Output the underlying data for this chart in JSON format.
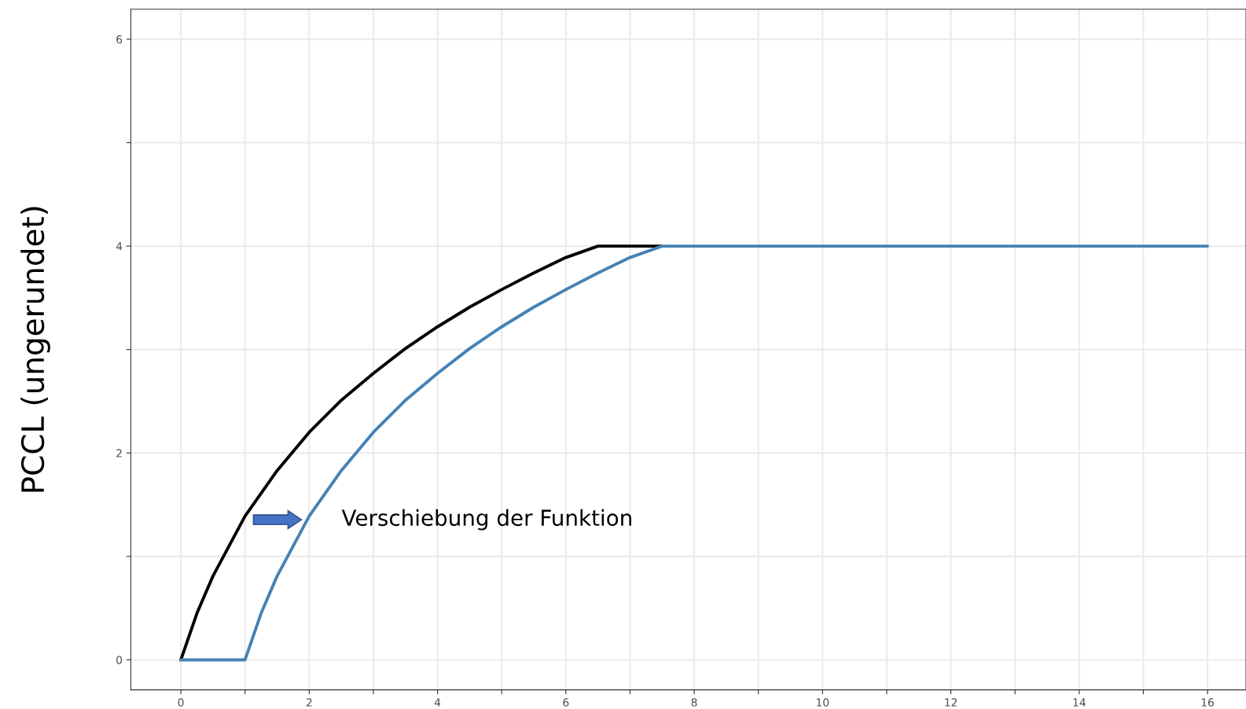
{
  "chart_data": {
    "type": "line",
    "ylabel": "PCCL (ungerundet)",
    "series": [
      {
        "color": "#000000",
        "x": [
          0,
          0.25,
          0.5,
          1,
          1.5,
          2,
          2.5,
          3,
          3.5,
          4,
          4.5,
          5,
          5.5,
          6,
          6.5,
          7.5
        ],
        "values": [
          0,
          0.45,
          0.81,
          1.39,
          1.83,
          2.2,
          2.51,
          2.77,
          3.01,
          3.22,
          3.41,
          3.58,
          3.74,
          3.89,
          4,
          4
        ]
      },
      {
        "color": "#4682b4",
        "x": [
          0,
          1,
          1.25,
          1.5,
          2,
          2.5,
          3,
          3.5,
          4,
          4.5,
          5,
          5.5,
          6,
          6.5,
          7,
          7.5,
          16
        ],
        "values": [
          0,
          0,
          0.45,
          0.81,
          1.39,
          1.83,
          2.2,
          2.51,
          2.77,
          3.01,
          3.22,
          3.41,
          3.58,
          3.74,
          3.89,
          4,
          4
        ]
      }
    ],
    "annotations": [
      "Verschiebung der Funktion"
    ],
    "xlim": [
      -0.78,
      16.6
    ],
    "ylim": [
      -0.29,
      6.29
    ],
    "xticks": [
      0,
      {
        "value": 1,
        "label": null
      },
      2,
      {
        "value": 3,
        "label": null
      },
      4,
      {
        "value": 5,
        "label": null
      },
      6,
      {
        "value": 7,
        "label": null
      },
      8,
      {
        "value": 9,
        "label": null
      },
      10,
      {
        "value": 11,
        "label": null
      },
      12,
      {
        "value": 13,
        "label": null
      },
      14,
      {
        "value": 15,
        "label": null
      },
      16
    ],
    "yticks": [
      0,
      {
        "value": 1,
        "label": null
      },
      2,
      {
        "value": 3,
        "label": null
      },
      4,
      {
        "value": 5,
        "label": null
      },
      6
    ],
    "grid": true,
    "line_style": "solid"
  }
}
